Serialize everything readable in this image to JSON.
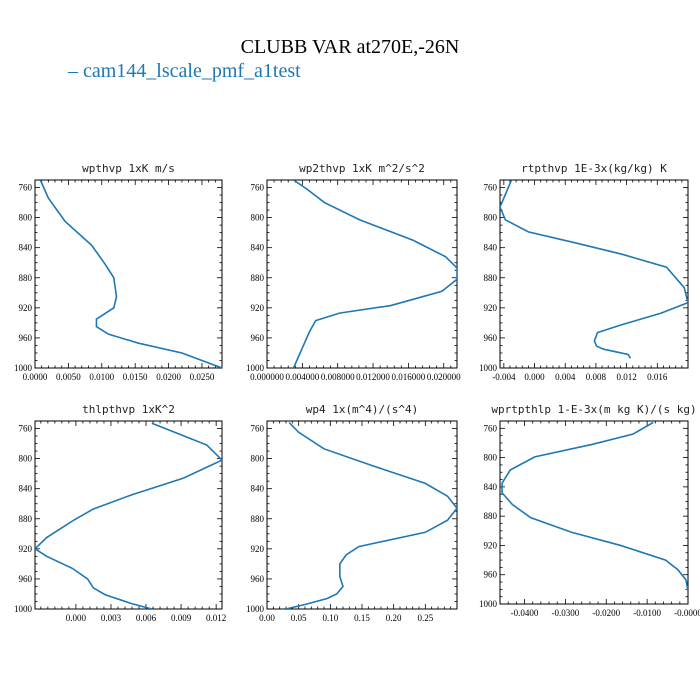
{
  "title": "CLUBB VAR at270E,-26N",
  "legend": {
    "label": "cam144_lscale_pmf_a1test",
    "color": "#1f77b4"
  },
  "chart_data": [
    {
      "type": "line",
      "title": "wpthvp  1xK m/s",
      "xlim": [
        0.0,
        0.028
      ],
      "ylim": [
        1000,
        750
      ],
      "xticks": [
        0.0,
        0.005,
        0.01,
        0.015,
        0.02,
        0.025
      ],
      "xtick_labels": [
        "0.0000",
        "0.0050",
        "0.0100",
        "0.0150",
        "0.0200",
        "0.0250"
      ],
      "yticks": [
        760,
        800,
        840,
        880,
        920,
        960,
        1000
      ],
      "series": [
        {
          "x": [
            0.0008,
            0.002,
            0.0045,
            0.0085,
            0.0105,
            0.0118,
            0.0122,
            0.0118,
            0.0092,
            0.0092,
            0.011,
            0.0155,
            0.022,
            0.028
          ],
          "y": [
            750,
            774,
            805,
            837,
            862,
            880,
            905,
            920,
            935,
            945,
            955,
            967,
            980,
            1000
          ]
        }
      ]
    },
    {
      "type": "line",
      "title": "wp2thvp  1xK m^2/s^2",
      "xlim": [
        0.0,
        0.0215
      ],
      "ylim": [
        1000,
        750
      ],
      "xticks": [
        0.0,
        0.004,
        0.008,
        0.012,
        0.016,
        0.02
      ],
      "xtick_labels": [
        "0.000000",
        "0.004000",
        "0.008000",
        "0.012000",
        "0.016000",
        "0.020000"
      ],
      "yticks": [
        760,
        800,
        840,
        880,
        920,
        960,
        1000
      ],
      "series": [
        {
          "x": [
            0.003,
            0.0045,
            0.0065,
            0.0105,
            0.0165,
            0.0202,
            0.0215,
            0.0215,
            0.0198,
            0.014,
            0.0082,
            0.0055,
            0.0048,
            0.0042,
            0.003
          ],
          "y": [
            750,
            762,
            780,
            803,
            830,
            852,
            867,
            882,
            898,
            917,
            927,
            937,
            952,
            968,
            1000
          ]
        }
      ]
    },
    {
      "type": "line",
      "title": "rtpthvp  1E-3x(kg/kg) K",
      "xlim": [
        -0.0045,
        0.02
      ],
      "ylim": [
        1000,
        750
      ],
      "xticks": [
        -0.004,
        0.0,
        0.004,
        0.008,
        0.012,
        0.016
      ],
      "xtick_labels": [
        "-0.004",
        "0.000",
        "0.004",
        "0.008",
        "0.012",
        "0.016"
      ],
      "yticks": [
        760,
        800,
        840,
        880,
        920,
        960,
        1000
      ],
      "series": [
        {
          "x": [
            -0.003,
            -0.0045,
            -0.0038,
            -0.0008,
            0.0055,
            0.0115,
            0.0172,
            0.0195,
            0.02,
            0.0165,
            0.0112,
            0.0082,
            0.0078,
            0.0081,
            0.009,
            0.0122,
            0.0125
          ],
          "y": [
            750,
            786,
            803,
            819,
            834,
            849,
            866,
            893,
            913,
            927,
            943,
            953,
            964,
            971,
            975,
            982,
            987
          ]
        }
      ]
    },
    {
      "type": "line",
      "title": "thlpthvp  1xK^2",
      "xlim": [
        -0.0035,
        0.0125
      ],
      "ylim": [
        1000,
        750
      ],
      "xticks": [
        0.0,
        0.003,
        0.006,
        0.009,
        0.012
      ],
      "xtick_labels": [
        "0.000",
        "0.003",
        "0.006",
        "0.009",
        "0.012"
      ],
      "yticks": [
        760,
        800,
        840,
        880,
        920,
        960,
        1000
      ],
      "series": [
        {
          "x": [
            0.0065,
            0.0112,
            0.0125,
            0.0092,
            0.0048,
            0.0015,
            -0.0002,
            -0.0025,
            -0.0035,
            -0.0025,
            -0.0003,
            0.001,
            0.0015,
            0.0025,
            0.0048,
            0.0065
          ],
          "y": [
            753,
            782,
            802,
            826,
            848,
            867,
            882,
            905,
            920,
            930,
            946,
            960,
            972,
            981,
            993,
            1000
          ]
        }
      ]
    },
    {
      "type": "line",
      "title": "wp4  1x(m^4)/(s^4)",
      "xlim": [
        0.0,
        0.3
      ],
      "ylim": [
        1000,
        750
      ],
      "xticks": [
        0.0,
        0.05,
        0.1,
        0.15,
        0.2,
        0.25
      ],
      "xtick_labels": [
        "0.00",
        "0.05",
        "0.10",
        "0.15",
        "0.20",
        "0.25"
      ],
      "yticks": [
        760,
        800,
        840,
        880,
        920,
        960,
        1000
      ],
      "series": [
        {
          "x": [
            0.035,
            0.05,
            0.09,
            0.165,
            0.25,
            0.285,
            0.3,
            0.285,
            0.25,
            0.145,
            0.125,
            0.115,
            0.115,
            0.12,
            0.11,
            0.095,
            0.06,
            0.03
          ],
          "y": [
            752,
            765,
            787,
            809,
            833,
            850,
            866,
            882,
            898,
            917,
            928,
            940,
            957,
            970,
            980,
            986,
            994,
            1000
          ]
        }
      ]
    },
    {
      "type": "line",
      "title": "wprtpthlp  1-E-3x(m kg K)/(s kg)",
      "xlim": [
        -0.046,
        0.0
      ],
      "ylim": [
        1000,
        750
      ],
      "xticks": [
        -0.04,
        -0.03,
        -0.02,
        -0.01,
        0.0
      ],
      "xtick_labels": [
        "-0.0400",
        "-0.0300",
        "-0.0200",
        "-0.0100",
        "-0.0000"
      ],
      "yticks": [
        760,
        800,
        840,
        880,
        920,
        960,
        1000
      ],
      "series": [
        {
          "x": [
            -0.0085,
            -0.0135,
            -0.0235,
            -0.0375,
            -0.0435,
            -0.0455,
            -0.0455,
            -0.043,
            -0.0385,
            -0.0285,
            -0.0165,
            -0.0055,
            -0.0025,
            -0.0005,
            0.0
          ],
          "y": [
            752,
            768,
            782,
            799,
            817,
            835,
            848,
            864,
            882,
            902,
            920,
            940,
            953,
            967,
            982
          ]
        }
      ]
    }
  ]
}
